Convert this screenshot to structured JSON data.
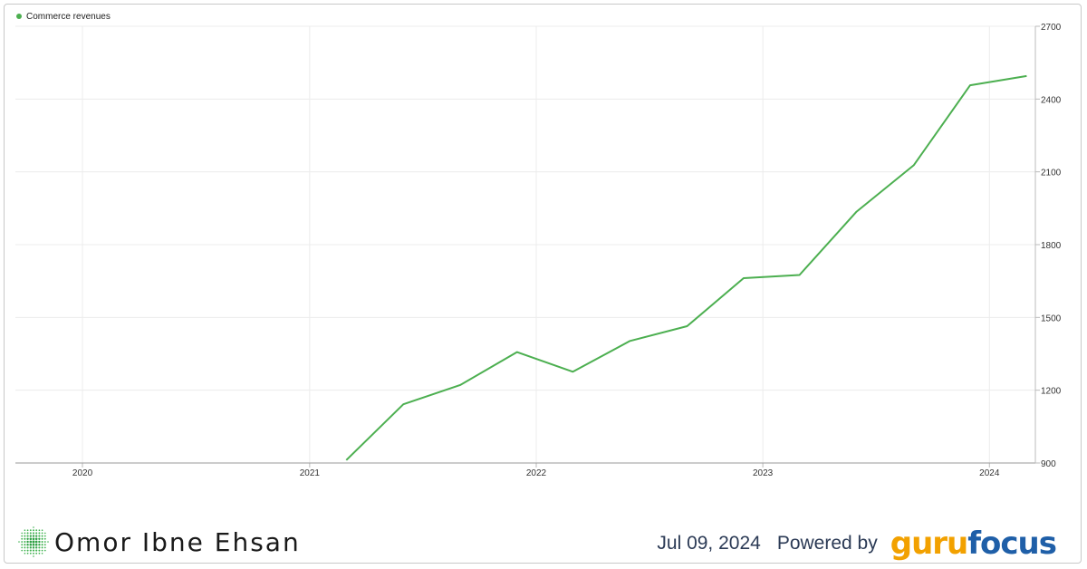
{
  "chart_data": {
    "type": "line",
    "title": "",
    "xlabel": "",
    "ylabel": "",
    "legend": {
      "position": "top-left",
      "entries": [
        "Commerce revenues"
      ]
    },
    "grid": true,
    "x_ticks": [
      "2020",
      "2021",
      "2022",
      "2023",
      "2024"
    ],
    "y_ticks": [
      900,
      1200,
      1500,
      1800,
      2100,
      2400,
      2700
    ],
    "xlim": [
      "2019-09-15",
      "2024-03-15"
    ],
    "ylim": [
      900,
      2700
    ],
    "series": [
      {
        "name": "Commerce revenues",
        "color": "#4caf50",
        "points": [
          {
            "x": "2021-03-01",
            "y": 912
          },
          {
            "x": "2021-06-01",
            "y": 1142
          },
          {
            "x": "2021-09-01",
            "y": 1222
          },
          {
            "x": "2021-12-01",
            "y": 1357
          },
          {
            "x": "2022-03-01",
            "y": 1276
          },
          {
            "x": "2022-06-01",
            "y": 1403
          },
          {
            "x": "2022-09-01",
            "y": 1464
          },
          {
            "x": "2022-12-01",
            "y": 1662
          },
          {
            "x": "2023-03-01",
            "y": 1675
          },
          {
            "x": "2023-06-01",
            "y": 1936
          },
          {
            "x": "2023-09-01",
            "y": 2127
          },
          {
            "x": "2023-12-01",
            "y": 2457
          },
          {
            "x": "2024-03-01",
            "y": 2495
          }
        ]
      }
    ]
  },
  "footer": {
    "author": "Omor Ibne Ehsan",
    "date": "Jul 09, 2024",
    "powered_by": "Powered by",
    "brand_part1": "guru",
    "brand_part2": "focus",
    "logo_icon": "green-dotted-globe-icon"
  }
}
